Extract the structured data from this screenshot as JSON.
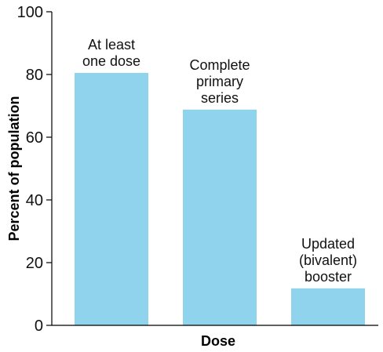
{
  "chart_data": {
    "type": "bar",
    "categories": [
      "At least one dose",
      "Complete primary series",
      "Updated (bivalent) booster"
    ],
    "category_label_lines": [
      [
        "At least",
        "one dose"
      ],
      [
        "Complete",
        "primary",
        "series"
      ],
      [
        "Updated",
        "(bivalent)",
        "booster"
      ]
    ],
    "values": [
      80.5,
      68.8,
      11.8
    ],
    "title": "",
    "xlabel": "Dose",
    "ylabel": "Percent of population",
    "ylim": [
      0,
      100
    ],
    "yticks": [
      0,
      20,
      40,
      60,
      80,
      100
    ],
    "grid": false,
    "legend": "none",
    "bar_color": "#8fd4ec",
    "axis_color": "#000000"
  }
}
